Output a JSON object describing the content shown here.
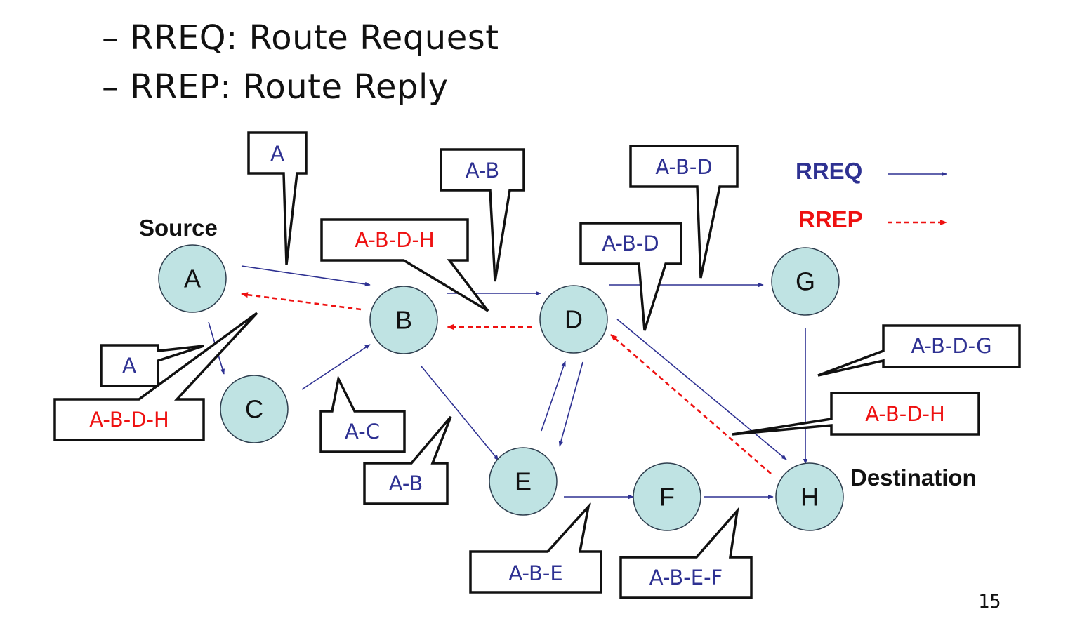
{
  "bullets": [
    "– RREQ: Route Request",
    "– RREP: Route Reply"
  ],
  "colors": {
    "rreq": "#2e3192",
    "rrep": "#ee1111",
    "node_fill": "#bfe3e3"
  },
  "nodes": [
    {
      "id": "A",
      "label": "A"
    },
    {
      "id": "B",
      "label": "B"
    },
    {
      "id": "C",
      "label": "C"
    },
    {
      "id": "D",
      "label": "D"
    },
    {
      "id": "E",
      "label": "E"
    },
    {
      "id": "F",
      "label": "F"
    },
    {
      "id": "G",
      "label": "G"
    },
    {
      "id": "H",
      "label": "H"
    }
  ],
  "edges_rreq": [
    {
      "from": "A",
      "to": "B"
    },
    {
      "from": "A",
      "to": "C"
    },
    {
      "from": "C",
      "to": "B"
    },
    {
      "from": "B",
      "to": "D"
    },
    {
      "from": "B",
      "to": "E"
    },
    {
      "from": "E",
      "to": "D"
    },
    {
      "from": "D",
      "to": "E"
    },
    {
      "from": "D",
      "to": "G"
    },
    {
      "from": "D",
      "to": "H"
    },
    {
      "from": "E",
      "to": "F"
    },
    {
      "from": "F",
      "to": "H"
    },
    {
      "from": "G",
      "to": "H"
    }
  ],
  "edges_rrep": [
    {
      "from": "H",
      "to": "D"
    },
    {
      "from": "D",
      "to": "B"
    },
    {
      "from": "B",
      "to": "A"
    }
  ],
  "callouts": [
    {
      "text": "A",
      "kind": "rreq"
    },
    {
      "text": "A-B",
      "kind": "rreq"
    },
    {
      "text": "A-B-D",
      "kind": "rreq"
    },
    {
      "text": "A-B-D-H",
      "kind": "rrep"
    },
    {
      "text": "A-B-D",
      "kind": "rreq"
    },
    {
      "text": "A",
      "kind": "rreq"
    },
    {
      "text": "A-B-D-H",
      "kind": "rrep"
    },
    {
      "text": "A-C",
      "kind": "rreq"
    },
    {
      "text": "A-B",
      "kind": "rreq"
    },
    {
      "text": "A-B-D-G",
      "kind": "rreq"
    },
    {
      "text": "A-B-D-H",
      "kind": "rrep"
    },
    {
      "text": "A-B-E",
      "kind": "rreq"
    },
    {
      "text": "A-B-E-F",
      "kind": "rreq"
    }
  ],
  "labels": {
    "source": "Source",
    "destination": "Destination"
  },
  "legend": [
    {
      "label": "RREQ",
      "kind": "rreq"
    },
    {
      "label": "RREP",
      "kind": "rrep"
    }
  ],
  "page_number": "15"
}
